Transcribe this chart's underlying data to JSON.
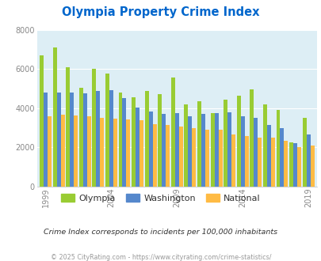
{
  "title": "Olympia Property Crime Index",
  "years_data": [
    [
      1999,
      6700,
      4800,
      3600
    ],
    [
      2000,
      7100,
      4820,
      3680
    ],
    [
      2001,
      6100,
      4800,
      3650
    ],
    [
      2002,
      5050,
      4780,
      3600
    ],
    [
      2003,
      6020,
      4880,
      3500
    ],
    [
      2004,
      5780,
      4920,
      3490
    ],
    [
      2005,
      4800,
      4520,
      3430
    ],
    [
      2006,
      4560,
      4050,
      3390
    ],
    [
      2007,
      4900,
      3850,
      3200
    ],
    [
      2008,
      4720,
      3710,
      3160
    ],
    [
      2009,
      5580,
      3740,
      3050
    ],
    [
      2010,
      4220,
      3600,
      2990
    ],
    [
      2011,
      4380,
      3720,
      2900
    ],
    [
      2012,
      3750,
      3760,
      2890
    ],
    [
      2013,
      4450,
      3780,
      2680
    ],
    [
      2014,
      4650,
      3580,
      2600
    ],
    [
      2015,
      4950,
      3520,
      2500
    ],
    [
      2016,
      4180,
      3160,
      2490
    ],
    [
      2017,
      3920,
      2980,
      2350
    ],
    [
      2018,
      2250,
      2230,
      2000
    ],
    [
      2019,
      3520,
      2680,
      2100
    ]
  ],
  "olympia_color": "#99cc33",
  "washington_color": "#5588cc",
  "national_color": "#ffbb44",
  "bg_color": "#ddeef5",
  "title_color": "#0066cc",
  "yticks": [
    0,
    2000,
    4000,
    6000,
    8000
  ],
  "xlabel_years": [
    1999,
    2004,
    2009,
    2014,
    2019
  ],
  "subtitle": "Crime Index corresponds to incidents per 100,000 inhabitants",
  "footer": "© 2025 CityRating.com - https://www.cityrating.com/crime-statistics/",
  "legend_labels": [
    "Olympia",
    "Washington",
    "National"
  ]
}
